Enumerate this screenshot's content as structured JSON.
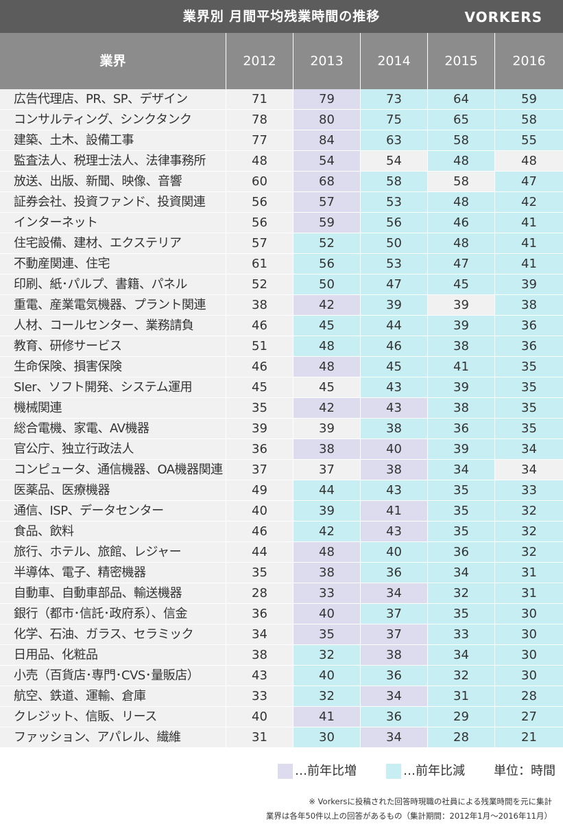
{
  "header": {
    "title": "業界別 月間平均残業時間の推移",
    "logo": "VORKERS"
  },
  "chart_data": {
    "type": "table",
    "title": "業界別 月間平均残業時間の推移",
    "columns": [
      "業界",
      "2012",
      "2013",
      "2014",
      "2015",
      "2016"
    ],
    "rows": [
      {
        "industry": "広告代理店、PR、SP、デザイン",
        "values": [
          71,
          79,
          73,
          64,
          59
        ]
      },
      {
        "industry": "コンサルティング、シンクタンク",
        "values": [
          78,
          80,
          75,
          65,
          58
        ]
      },
      {
        "industry": "建築、土木、設備工事",
        "values": [
          77,
          84,
          63,
          58,
          55
        ]
      },
      {
        "industry": "監査法人、税理士法人、法律事務所",
        "values": [
          48,
          54,
          54,
          48,
          48
        ]
      },
      {
        "industry": "放送、出版、新聞、映像、音響",
        "values": [
          60,
          68,
          58,
          58,
          47
        ]
      },
      {
        "industry": "証券会社、投資ファンド、投資関連",
        "values": [
          56,
          57,
          53,
          48,
          42
        ]
      },
      {
        "industry": "インターネット",
        "values": [
          56,
          59,
          56,
          46,
          41
        ]
      },
      {
        "industry": "住宅設備、建材、エクステリア",
        "values": [
          57,
          52,
          50,
          48,
          41
        ]
      },
      {
        "industry": "不動産関連、住宅",
        "values": [
          61,
          56,
          53,
          47,
          41
        ]
      },
      {
        "industry": "印刷、紙･パルプ、書籍、パネル",
        "values": [
          52,
          50,
          47,
          45,
          39
        ]
      },
      {
        "industry": "重電、産業電気機器、プラント関連",
        "values": [
          38,
          42,
          39,
          39,
          38
        ]
      },
      {
        "industry": "人材、コールセンター、業務請負",
        "values": [
          46,
          45,
          44,
          39,
          36
        ]
      },
      {
        "industry": "教育、研修サービス",
        "values": [
          51,
          48,
          46,
          38,
          36
        ]
      },
      {
        "industry": "生命保険、損害保険",
        "values": [
          46,
          48,
          45,
          41,
          35
        ]
      },
      {
        "industry": "SIer、ソフト開発、システム運用",
        "values": [
          45,
          45,
          43,
          39,
          35
        ]
      },
      {
        "industry": "機械関連",
        "values": [
          35,
          42,
          43,
          38,
          35
        ]
      },
      {
        "industry": "総合電機、家電、AV機器",
        "values": [
          39,
          39,
          38,
          36,
          35
        ]
      },
      {
        "industry": "官公庁、独立行政法人",
        "values": [
          36,
          38,
          40,
          39,
          34
        ]
      },
      {
        "industry": "コンピュータ、通信機器、OA機器関連",
        "values": [
          37,
          37,
          38,
          34,
          34
        ]
      },
      {
        "industry": "医薬品、医療機器",
        "values": [
          49,
          44,
          43,
          35,
          33
        ]
      },
      {
        "industry": "通信、ISP、データセンター",
        "values": [
          40,
          39,
          41,
          35,
          32
        ]
      },
      {
        "industry": "食品、飲料",
        "values": [
          46,
          42,
          43,
          35,
          32
        ]
      },
      {
        "industry": "旅行、ホテル、旅館、レジャー",
        "values": [
          44,
          48,
          40,
          36,
          32
        ]
      },
      {
        "industry": "半導体、電子、精密機器",
        "values": [
          35,
          38,
          36,
          34,
          31
        ]
      },
      {
        "industry": "自動車、自動車部品、輸送機器",
        "values": [
          28,
          33,
          34,
          32,
          31
        ]
      },
      {
        "industry": "銀行（都市･信託･政府系）、信金",
        "values": [
          36,
          40,
          37,
          35,
          30
        ]
      },
      {
        "industry": "化学、石油、ガラス、セラミック",
        "values": [
          34,
          35,
          37,
          33,
          30
        ]
      },
      {
        "industry": "日用品、化粧品",
        "values": [
          38,
          32,
          38,
          34,
          30
        ]
      },
      {
        "industry": "小売（百貨店･専門･CVS･量販店）",
        "values": [
          43,
          40,
          36,
          32,
          30
        ]
      },
      {
        "industry": "航空、鉄道、運輸、倉庫",
        "values": [
          33,
          32,
          34,
          31,
          28
        ]
      },
      {
        "industry": "クレジット、信販、リース",
        "values": [
          40,
          41,
          36,
          29,
          27
        ]
      },
      {
        "industry": "ファッション、アパレル、繊維",
        "values": [
          31,
          30,
          34,
          28,
          21
        ]
      }
    ]
  },
  "legend": {
    "increase_label": "…前年比増",
    "decrease_label": "…前年比減",
    "unit_label": "単位：時間"
  },
  "notes": {
    "line1": "※ Vorkersに投稿された回答時現職の社員による残業時間を元に集計",
    "line2": "業界は各年50件以上の回答があるもの（集計期間：2012年1月〜2016年11月）"
  },
  "colors": {
    "header_bg": "#5c5c5c",
    "column_header_bg": "#8c8c8c",
    "neutral_cell": "#f1f1f1",
    "increase_cell": "#dcdcee",
    "decrease_cell": "#c7eef2"
  }
}
